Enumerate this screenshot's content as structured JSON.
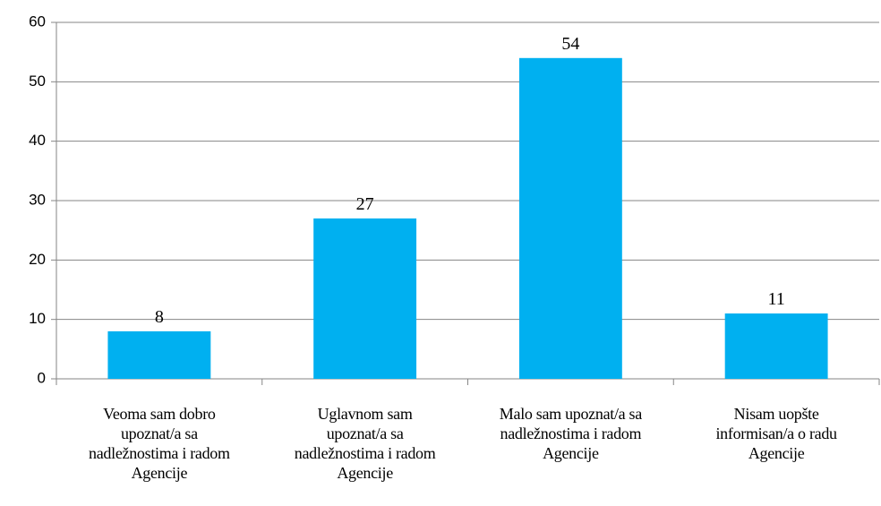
{
  "chart_data": {
    "type": "bar",
    "categories": [
      "Veoma sam dobro upoznat/a sa nadležnostima i radom Agencije",
      "Uglavnom sam upoznat/a sa nadležnostima i radom Agencije",
      "Malo sam upoznat/a sa nadležnostima i radom Agencije",
      "Nisam uopšte informisan/a o radu Agencije"
    ],
    "values": [
      8,
      27,
      54,
      11
    ],
    "color": "#00b0f0",
    "ylim": [
      0,
      60
    ],
    "yticks": [
      0,
      10,
      20,
      30,
      40,
      50,
      60
    ],
    "grid": true
  }
}
